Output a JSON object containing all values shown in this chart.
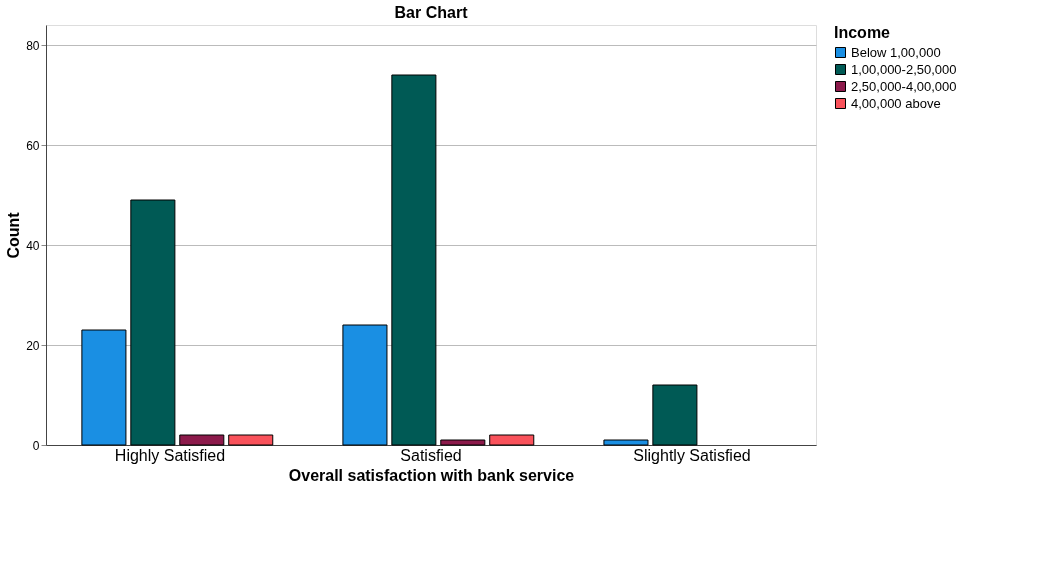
{
  "chart_data": {
    "type": "bar",
    "title": "Bar Chart",
    "xlabel": "Overall satisfaction with bank service",
    "ylabel": "Count",
    "legend_title": "Income",
    "categories": [
      "Highly Satisfied",
      "Satisfied",
      "Slightly Satisfied"
    ],
    "series": [
      {
        "name": "Below 1,00,000",
        "color": "#1a8fe3",
        "values": [
          23,
          24,
          1
        ]
      },
      {
        "name": "1,00,000-2,50,000",
        "color": "#005a55",
        "values": [
          49,
          74,
          12
        ]
      },
      {
        "name": "2,50,000-4,00,000",
        "color": "#8c1a4b",
        "values": [
          2,
          1,
          null
        ]
      },
      {
        "name": "4,00,000 above",
        "color": "#f9525b",
        "values": [
          2,
          2,
          null
        ]
      }
    ],
    "ylim": [
      0,
      84
    ],
    "yticks": [
      0,
      20,
      40,
      60,
      80
    ],
    "grid": "y",
    "legend": "top right"
  }
}
